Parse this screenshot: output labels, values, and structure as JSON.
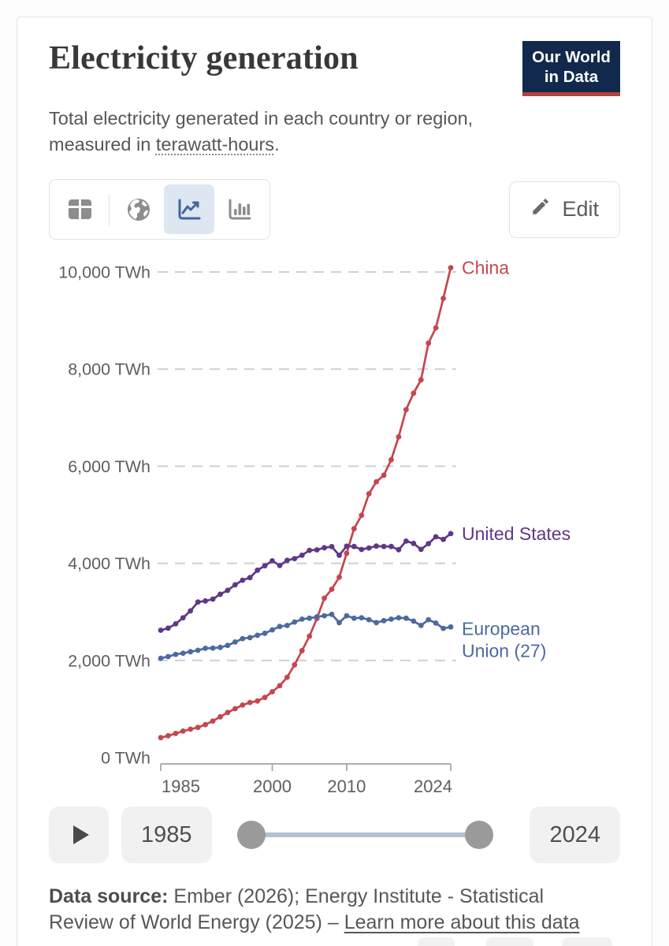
{
  "header": {
    "title": "Electricity generation",
    "subtitle_before": "Total electricity generated in each country or region, measured in ",
    "subtitle_link": "terawatt-hours",
    "subtitle_after": ".",
    "logo": {
      "line1": "Our World",
      "line2": "in Data",
      "bg_color": "#12294e",
      "accent_color": "#b5413a"
    }
  },
  "toolbar": {
    "tabs": [
      {
        "name": "table",
        "active": false
      },
      {
        "name": "map",
        "active": false
      },
      {
        "name": "line-chart",
        "active": true
      },
      {
        "name": "bar-chart",
        "active": false
      }
    ],
    "active_tab_bg": "#dde6f1",
    "edit_label": "Edit"
  },
  "chart_data": {
    "type": "line",
    "title": "Electricity generation",
    "unit": "TWh",
    "grid": "horizontal dashed",
    "legend_position": "line-end labels",
    "xlim": [
      1985,
      2024
    ],
    "ylim": [
      0,
      10000
    ],
    "x_ticks": [
      1985,
      2000,
      2010,
      2024
    ],
    "y_ticks": [
      0,
      2000,
      4000,
      6000,
      8000,
      10000
    ],
    "y_tick_labels": [
      "0 TWh",
      "2,000 TWh",
      "4,000 TWh",
      "6,000 TWh",
      "8,000 TWh",
      "10,000 TWh"
    ],
    "x": [
      1985,
      1986,
      1987,
      1988,
      1989,
      1990,
      1991,
      1992,
      1993,
      1994,
      1995,
      1996,
      1997,
      1998,
      1999,
      2000,
      2001,
      2002,
      2003,
      2004,
      2005,
      2006,
      2007,
      2008,
      2009,
      2010,
      2011,
      2012,
      2013,
      2014,
      2015,
      2016,
      2017,
      2018,
      2019,
      2020,
      2021,
      2022,
      2023,
      2024
    ],
    "series": [
      {
        "name": "China",
        "color": "#C5464F",
        "values": [
          411,
          450,
          497,
          545,
          585,
          621,
          678,
          754,
          839,
          928,
          1007,
          1081,
          1134,
          1166,
          1239,
          1356,
          1481,
          1654,
          1911,
          2203,
          2500,
          2866,
          3282,
          3466,
          3715,
          4207,
          4713,
          4988,
          5432,
          5680,
          5815,
          6133,
          6604,
          7166,
          7503,
          7779,
          8534,
          8849,
          9456,
          10087
        ]
      },
      {
        "name": "United States",
        "color": "#5F3789",
        "values": [
          2621,
          2665,
          2754,
          2880,
          3021,
          3203,
          3226,
          3263,
          3364,
          3444,
          3558,
          3652,
          3706,
          3858,
          3950,
          4052,
          3955,
          4061,
          4098,
          4167,
          4268,
          4277,
          4322,
          4344,
          4165,
          4354,
          4348,
          4285,
          4317,
          4356,
          4348,
          4347,
          4281,
          4457,
          4411,
          4288,
          4406,
          4547,
          4494,
          4612
        ]
      },
      {
        "name": "European Union (27)",
        "label_lines": [
          "European",
          "Union (27)"
        ],
        "color": "#4C6A9E",
        "values": [
          2045,
          2080,
          2125,
          2150,
          2180,
          2210,
          2250,
          2255,
          2270,
          2310,
          2380,
          2450,
          2470,
          2520,
          2560,
          2630,
          2700,
          2720,
          2790,
          2850,
          2870,
          2900,
          2920,
          2950,
          2780,
          2920,
          2870,
          2880,
          2840,
          2780,
          2820,
          2850,
          2880,
          2870,
          2810,
          2720,
          2840,
          2770,
          2660,
          2690
        ]
      }
    ]
  },
  "timeline": {
    "start_year": "1985",
    "end_year": "2024"
  },
  "footer": {
    "label_bold": "Data source:",
    "text": " Ember (2026); Energy Institute - Statistical Review of World Energy (2025) – ",
    "link": "Learn more about this data"
  }
}
